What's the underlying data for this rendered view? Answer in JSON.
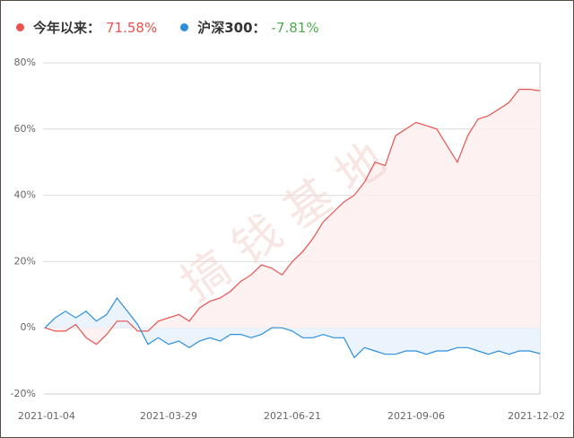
{
  "chart_data": {
    "type": "line",
    "watermark": "搞钱基地",
    "categories": [
      "2021-01-04",
      null,
      null,
      null,
      null,
      null,
      null,
      null,
      null,
      null,
      null,
      null,
      "2021-03-29",
      null,
      null,
      null,
      null,
      null,
      null,
      null,
      null,
      null,
      null,
      null,
      "2021-06-21",
      null,
      null,
      null,
      null,
      null,
      null,
      null,
      null,
      null,
      null,
      null,
      "2021-09-06",
      null,
      null,
      null,
      null,
      null,
      null,
      null,
      null,
      null,
      null,
      null,
      "2021-12-02"
    ],
    "series": [
      {
        "name": "今年以来：",
        "color": "#e8534f",
        "fill": "#fdeeee",
        "summary": {
          "value": 71.58,
          "label": "71.58%"
        },
        "summary_color": "#e8534f",
        "values": [
          0,
          -1,
          -1,
          1,
          -3,
          -5,
          -2,
          2,
          2,
          -1,
          -1,
          2,
          3,
          4,
          2,
          6,
          8,
          9,
          11,
          14,
          16,
          19,
          18,
          16,
          20,
          23,
          27,
          32,
          35,
          38,
          40,
          44,
          50,
          49,
          58,
          60,
          62,
          61,
          60,
          55,
          50,
          58,
          63,
          64,
          66,
          68,
          72,
          72,
          71.58
        ]
      },
      {
        "name": "沪深300：",
        "color": "#2b8fdd",
        "fill": "#e8f2fc",
        "summary": {
          "value": -7.81,
          "label": "-7.81%"
        },
        "summary_color": "#4cae4c",
        "values": [
          0,
          3,
          5,
          3,
          5,
          2,
          4,
          9,
          5,
          1,
          -5,
          -3,
          -5,
          -4,
          -6,
          -4,
          -3,
          -4,
          -2,
          -2,
          -3,
          -2,
          0,
          0,
          -1,
          -3,
          -3,
          -2,
          -3,
          -3,
          -9,
          -6,
          -7,
          -8,
          -8,
          -7,
          -7,
          -8,
          -7,
          -7,
          -6,
          -6,
          -7,
          -8,
          -7,
          -8,
          -7,
          -7,
          -7.81
        ]
      }
    ],
    "ylim": [
      -20,
      80
    ],
    "yticks": [
      {
        "value": -20,
        "label": "-20%"
      },
      {
        "value": 0,
        "label": "0%"
      },
      {
        "value": 20,
        "label": "20%"
      },
      {
        "value": 40,
        "label": "40%"
      },
      {
        "value": 60,
        "label": "60%"
      },
      {
        "value": 80,
        "label": "80%"
      }
    ],
    "grid": true
  }
}
